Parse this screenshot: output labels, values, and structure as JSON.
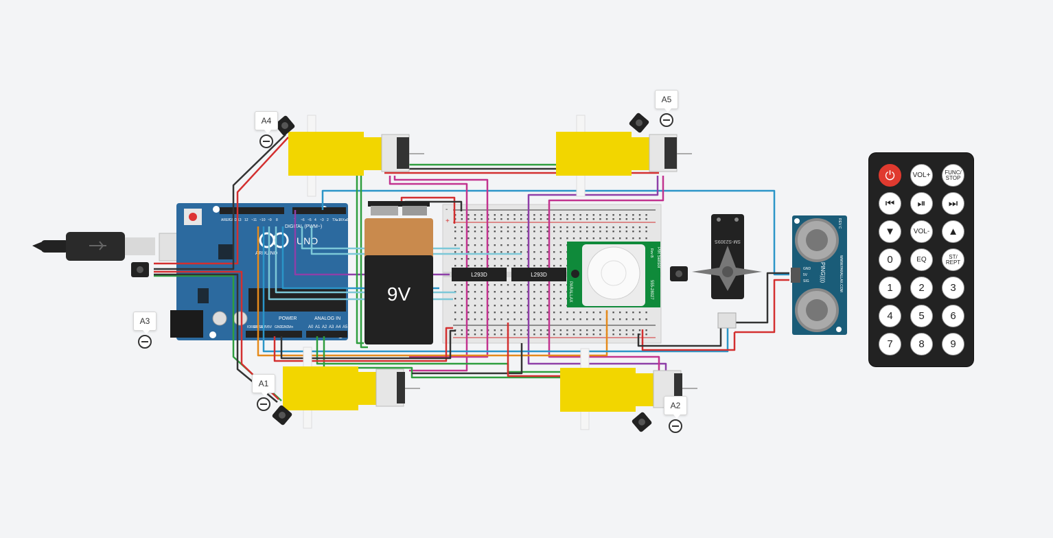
{
  "probes": [
    {
      "name": "probe-a4",
      "label": "A4"
    },
    {
      "name": "probe-a5",
      "label": "A5"
    },
    {
      "name": "probe-a3",
      "label": "A3"
    },
    {
      "name": "probe-a1",
      "label": "A1"
    },
    {
      "name": "probe-a2",
      "label": "A2"
    }
  ],
  "arduino": {
    "brand": "ARDUINO",
    "model": "UNO",
    "digital_label": "DIGITAL (PWM~)",
    "power_label": "POWER",
    "analog_label": "ANALOG IN",
    "power_pins": [
      "IOREF",
      "RESET",
      "3.3V",
      "5V",
      "GND",
      "GND",
      "Vin"
    ],
    "analog_pins": [
      "A0",
      "A1",
      "A2",
      "A3",
      "A4",
      "A5"
    ],
    "header_left": [
      "AREF",
      "GND",
      "13",
      "12",
      "~11",
      "~10",
      "~9",
      "8"
    ],
    "header_right": [
      "7",
      "~6",
      "~5",
      "4",
      "~3",
      "2",
      "TX▸1",
      "RX◂0"
    ]
  },
  "battery": {
    "label": "9V"
  },
  "chips": [
    {
      "label": "L293D"
    },
    {
      "label": "L293D"
    }
  ],
  "breadboard": {
    "columns": [
      "1",
      "2",
      "3",
      "4",
      "5",
      "6",
      "7",
      "8",
      "9",
      "10",
      "11",
      "12",
      "13",
      "14",
      "15",
      "16",
      "17",
      "18",
      "19",
      "20",
      "21",
      "22",
      "23",
      "24",
      "25",
      "26",
      "27",
      "28",
      "29",
      "30"
    ],
    "rows_top": [
      "j",
      "i",
      "h",
      "g",
      "f"
    ],
    "rows_bottom": [
      "e",
      "d",
      "c",
      "b",
      "a"
    ]
  },
  "pir": {
    "label": "PIR Sensor",
    "brand": "PARALLAX",
    "part": "555-28027",
    "rev": "Rev B"
  },
  "servo": {
    "label": "SM-S2309S"
  },
  "ping": {
    "label": "PING))))",
    "rev": "REV C",
    "url": "WWW.PARALLAX.COM",
    "pins": [
      "GND",
      "5V",
      "SIG"
    ]
  },
  "remote": {
    "buttons": [
      {
        "name": "power-button",
        "label": "⏻",
        "cls": "power"
      },
      {
        "name": "vol-up-button",
        "label": "VOL+",
        "cls": "small"
      },
      {
        "name": "func-stop-button",
        "label": "FUNC/ STOP",
        "cls": "tiny"
      },
      {
        "name": "prev-button",
        "label": "⏮",
        "cls": ""
      },
      {
        "name": "play-pause-button",
        "label": "⏯",
        "cls": ""
      },
      {
        "name": "next-button",
        "label": "⏭",
        "cls": ""
      },
      {
        "name": "down-button",
        "label": "▼",
        "cls": ""
      },
      {
        "name": "vol-down-button",
        "label": "VOL-",
        "cls": "small"
      },
      {
        "name": "up-button",
        "label": "▲",
        "cls": ""
      },
      {
        "name": "digit-0-button",
        "label": "0",
        "cls": ""
      },
      {
        "name": "eq-button",
        "label": "EQ",
        "cls": "small"
      },
      {
        "name": "st-rept-button",
        "label": "ST/ REPT",
        "cls": "tiny"
      },
      {
        "name": "digit-1-button",
        "label": "1",
        "cls": ""
      },
      {
        "name": "digit-2-button",
        "label": "2",
        "cls": ""
      },
      {
        "name": "digit-3-button",
        "label": "3",
        "cls": ""
      },
      {
        "name": "digit-4-button",
        "label": "4",
        "cls": ""
      },
      {
        "name": "digit-5-button",
        "label": "5",
        "cls": ""
      },
      {
        "name": "digit-6-button",
        "label": "6",
        "cls": ""
      },
      {
        "name": "digit-7-button",
        "label": "7",
        "cls": ""
      },
      {
        "name": "digit-8-button",
        "label": "8",
        "cls": ""
      },
      {
        "name": "digit-9-button",
        "label": "9",
        "cls": ""
      }
    ]
  },
  "colors": {
    "wire_red": "#d32f2f",
    "wire_black": "#333333",
    "wire_green": "#2e9e3e",
    "wire_blue": "#2b95c8",
    "wire_purple": "#8e3fa8",
    "wire_magenta": "#c2338f",
    "wire_orange": "#e58a1b",
    "wire_lightblue": "#7cc8d8",
    "motor_yellow": "#f2d600",
    "arduino_blue": "#2c6a9f"
  }
}
